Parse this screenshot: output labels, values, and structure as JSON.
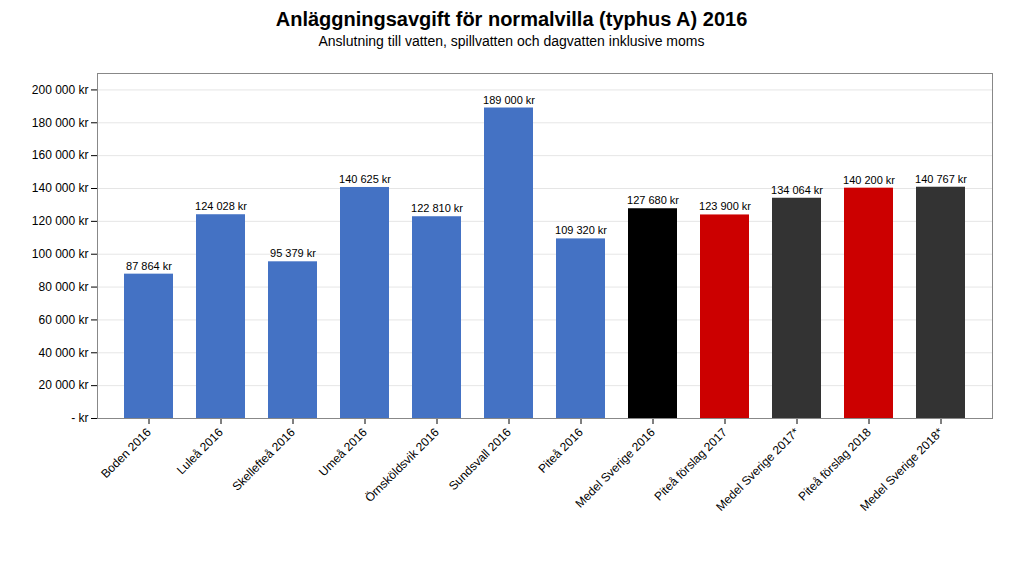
{
  "chart_data": {
    "type": "bar",
    "title": "Anläggningsavgift för normalvilla (typhus A) 2016",
    "subtitle": "Anslutning till vatten, spillvatten och dagvatten inklusive moms",
    "categories": [
      "Boden 2016",
      "Luleå 2016",
      "Skellefteå 2016",
      "Umeå 2016",
      "Örnsköldsvik 2016",
      "Sundsvall 2016",
      "Piteå 2016",
      "Medel Sverige 2016",
      "Piteå förslag 2017",
      "Medel Sverige 2017*",
      "Piteå förslag 2018",
      "Medel Sverige 2018*"
    ],
    "values": [
      87864,
      124028,
      95379,
      140625,
      122810,
      189000,
      109320,
      127680,
      123900,
      134064,
      140200,
      140767
    ],
    "value_labels": [
      "87 864 kr",
      "124 028 kr",
      "95 379 kr",
      "140 625 kr",
      "122 810 kr",
      "189 000 kr",
      "109 320 kr",
      "127 680 kr",
      "123 900 kr",
      "134 064 kr",
      "140 200 kr",
      "140 767 kr"
    ],
    "data_labels": true,
    "colors": [
      "#4472C4",
      "#4472C4",
      "#4472C4",
      "#4472C4",
      "#4472C4",
      "#4472C4",
      "#4472C4",
      "#000000",
      "#CC0000",
      "#333333",
      "#CC0000",
      "#333333"
    ],
    "ylim": [
      0,
      210000
    ],
    "yticks": [
      {
        "value": 0,
        "label": "- kr"
      },
      {
        "value": 20000,
        "label": "20 000 kr"
      },
      {
        "value": 40000,
        "label": "40 000 kr"
      },
      {
        "value": 60000,
        "label": "60 000 kr"
      },
      {
        "value": 80000,
        "label": "80 000 kr"
      },
      {
        "value": 100000,
        "label": "100 000 kr"
      },
      {
        "value": 120000,
        "label": "120 000 kr"
      },
      {
        "value": 140000,
        "label": "140 000 kr"
      },
      {
        "value": 160000,
        "label": "160 000 kr"
      },
      {
        "value": 180000,
        "label": "180 000 kr"
      },
      {
        "value": 200000,
        "label": "200 000 kr"
      }
    ],
    "grid": true
  }
}
